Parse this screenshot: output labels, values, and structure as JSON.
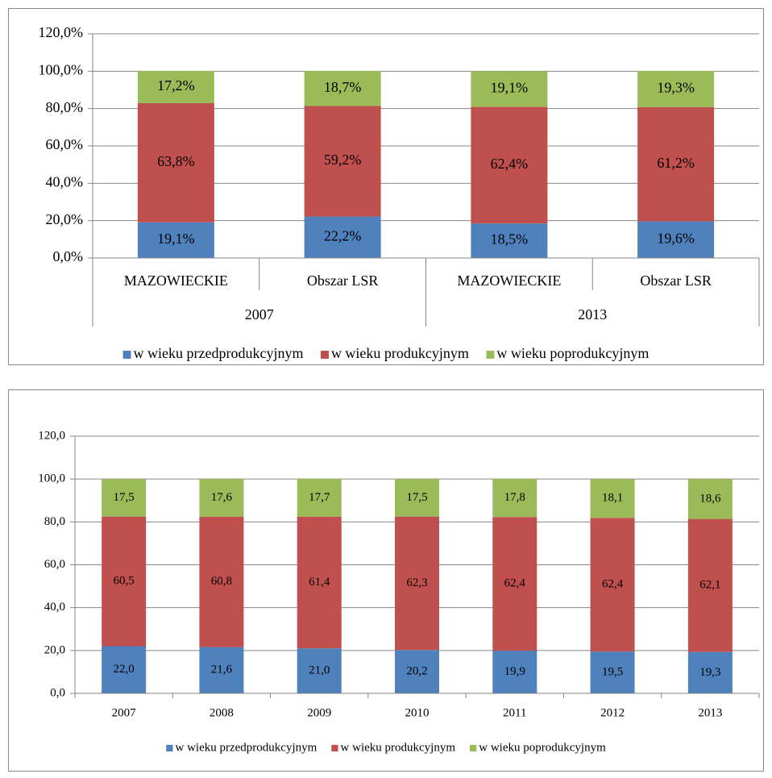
{
  "chart_data": [
    {
      "type": "stacked_bar",
      "categories": [
        "MAZOWIECKIE",
        "Obszar LSR",
        "MAZOWIECKIE",
        "Obszar LSR"
      ],
      "category_groups": [
        "2007",
        "2013"
      ],
      "ylim": [
        0,
        120
      ],
      "yticks": [
        {
          "value": 0,
          "label": "0,0%"
        },
        {
          "value": 20,
          "label": "20,0%"
        },
        {
          "value": 40,
          "label": "40,0%"
        },
        {
          "value": 60,
          "label": "60,0%"
        },
        {
          "value": 80,
          "label": "80,0%"
        },
        {
          "value": 100,
          "label": "100,0%"
        },
        {
          "value": 120,
          "label": "120,0%"
        }
      ],
      "grid": true,
      "legend": "bottom",
      "series": [
        {
          "name": "w wieku przedprodukcyjnym",
          "color": "#4f81bd",
          "values": [
            19.1,
            22.2,
            18.5,
            19.6
          ],
          "value_labels": [
            "19,1%",
            "22,2%",
            "18,5%",
            "19,6%"
          ]
        },
        {
          "name": "w wieku produkcyjnym",
          "color": "#c0504d",
          "values": [
            63.8,
            59.2,
            62.4,
            61.2
          ],
          "value_labels": [
            "63,8%",
            "59,2%",
            "62,4%",
            "61,2%"
          ]
        },
        {
          "name": "w wieku poprodukcyjnym",
          "color": "#9bbb59",
          "values": [
            17.2,
            18.7,
            19.1,
            19.3
          ],
          "value_labels": [
            "17,2%",
            "18,7%",
            "19,1%",
            "19,3%"
          ]
        }
      ]
    },
    {
      "type": "stacked_bar",
      "categories": [
        "2007",
        "2008",
        "2009",
        "2010",
        "2011",
        "2012",
        "2013"
      ],
      "ylim": [
        0,
        120
      ],
      "yticks": [
        {
          "value": 0,
          "label": "0,0"
        },
        {
          "value": 20,
          "label": "20,0"
        },
        {
          "value": 40,
          "label": "40,0"
        },
        {
          "value": 60,
          "label": "60,0"
        },
        {
          "value": 80,
          "label": "80,0"
        },
        {
          "value": 100,
          "label": "100,0"
        },
        {
          "value": 120,
          "label": "120,0"
        }
      ],
      "grid": true,
      "legend": "bottom",
      "series": [
        {
          "name": "w wieku przedprodukcyjnym",
          "color": "#4f81bd",
          "values": [
            22.0,
            21.6,
            21.0,
            20.2,
            19.9,
            19.5,
            19.3
          ],
          "value_labels": [
            "22,0",
            "21,6",
            "21,0",
            "20,2",
            "19,9",
            "19,5",
            "19,3"
          ]
        },
        {
          "name": "w wieku produkcyjnym",
          "color": "#c0504d",
          "values": [
            60.5,
            60.8,
            61.4,
            62.3,
            62.4,
            62.4,
            62.1
          ],
          "value_labels": [
            "60,5",
            "60,8",
            "61,4",
            "62,3",
            "62,4",
            "62,4",
            "62,1"
          ]
        },
        {
          "name": "w wieku poprodukcyjnym",
          "color": "#9bbb59",
          "values": [
            17.5,
            17.6,
            17.7,
            17.5,
            17.8,
            18.1,
            18.6
          ],
          "value_labels": [
            "17,5",
            "17,6",
            "17,7",
            "17,5",
            "17,8",
            "18,1",
            "18,6"
          ]
        }
      ]
    }
  ]
}
